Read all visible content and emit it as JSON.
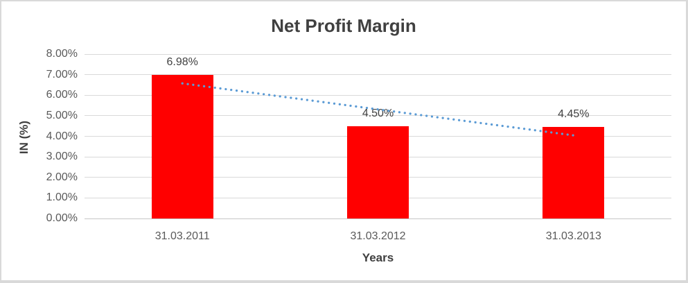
{
  "chart_data": {
    "type": "bar",
    "title": "Net Profit Margin",
    "xlabel": "Years",
    "ylabel": "IN (%)",
    "categories": [
      "31.03.2011",
      "31.03.2012",
      "31.03.2013"
    ],
    "series": [
      {
        "name": "Net Profit Margin",
        "values": [
          6.98,
          4.5,
          4.45
        ]
      }
    ],
    "data_labels": [
      "6.98%",
      "4.50%",
      "4.45%"
    ],
    "ylim": [
      0,
      8
    ],
    "y_tick_step": 1,
    "y_tick_labels": [
      "0.00%",
      "1.00%",
      "2.00%",
      "3.00%",
      "4.00%",
      "5.00%",
      "6.00%",
      "7.00%",
      "8.00%"
    ],
    "grid": true,
    "legend": false,
    "bar_color": "#ff0000",
    "trendline": {
      "type": "linear",
      "style": "dotted",
      "color": "#5b9bd5",
      "start_value": 6.575,
      "end_value": 4.045
    }
  },
  "colors": {
    "title_text": "#404040",
    "axis_title_text": "#3f3f3f",
    "tick_text": "#595959",
    "data_label_text": "#404040",
    "gridline": "#d9d9d9",
    "axis_line": "#c6c6c6",
    "frame_border": "#d9d9d9",
    "background": "#ffffff"
  }
}
